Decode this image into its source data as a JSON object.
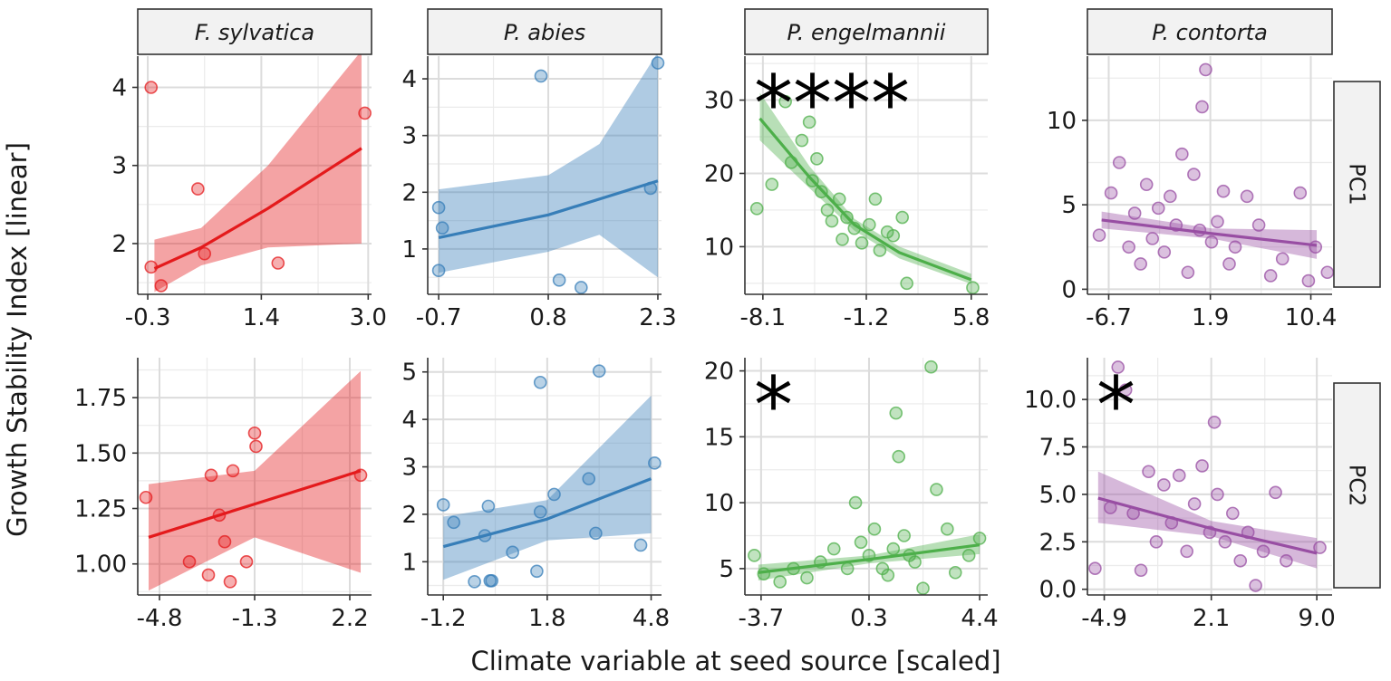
{
  "chart_data": {
    "type": "scatter",
    "layout": "facet_grid",
    "ylabel": "Growth Stability Index [linear]",
    "xlabel": "Climate variable at seed source [scaled]",
    "columns": [
      "F. sylvatica",
      "P. abies",
      "P. engelmannii",
      "P. contorta"
    ],
    "rows": [
      "PC1",
      "PC2"
    ],
    "colors": {
      "F. sylvatica": "#e41a1c",
      "P. abies": "#377eb8",
      "P. engelmannii": "#4daf4a",
      "P. contorta": "#984ea3"
    },
    "panels": [
      {
        "species": "F. sylvatica",
        "row": "PC1",
        "xlim": [
          -0.45,
          3.05
        ],
        "ylim": [
          1.35,
          4.4
        ],
        "xticks": [
          -0.3,
          1.4,
          3.0
        ],
        "xtick_labels": [
          "-0.3",
          "1.4",
          "3.0"
        ],
        "yticks": [
          2,
          3,
          4
        ],
        "ytick_labels": [
          "2",
          "3",
          "4"
        ],
        "significance": "",
        "points": [
          [
            -0.25,
            4.0
          ],
          [
            -0.25,
            1.7
          ],
          [
            -0.1,
            1.46
          ],
          [
            0.45,
            2.7
          ],
          [
            0.55,
            1.87
          ],
          [
            1.65,
            1.75
          ],
          [
            2.95,
            3.67
          ]
        ],
        "fit": [
          [
            -0.2,
            1.68
          ],
          [
            0.5,
            1.95
          ],
          [
            1.5,
            2.45
          ],
          [
            2.9,
            3.22
          ]
        ],
        "ci_upper": [
          [
            -0.2,
            2.05
          ],
          [
            0.5,
            2.2
          ],
          [
            1.5,
            3.0
          ],
          [
            2.9,
            4.47
          ]
        ],
        "ci_lower": [
          [
            -0.2,
            1.38
          ],
          [
            0.5,
            1.72
          ],
          [
            1.5,
            1.95
          ],
          [
            2.9,
            2.0
          ]
        ]
      },
      {
        "species": "P. abies",
        "row": "PC1",
        "xlim": [
          -0.85,
          2.35
        ],
        "ylim": [
          0.2,
          4.4
        ],
        "xticks": [
          -0.7,
          0.8,
          2.3
        ],
        "xtick_labels": [
          "-0.7",
          "0.8",
          "2.3"
        ],
        "yticks": [
          1,
          2,
          3,
          4
        ],
        "ytick_labels": [
          "1",
          "2",
          "3",
          "4"
        ],
        "significance": "",
        "points": [
          [
            -0.7,
            1.73
          ],
          [
            -0.65,
            1.37
          ],
          [
            -0.7,
            0.62
          ],
          [
            0.7,
            4.05
          ],
          [
            0.95,
            0.45
          ],
          [
            1.25,
            0.32
          ],
          [
            2.2,
            2.07
          ],
          [
            2.3,
            4.28
          ]
        ],
        "fit": [
          [
            -0.7,
            1.2
          ],
          [
            0.8,
            1.6
          ],
          [
            2.3,
            2.2
          ]
        ],
        "ci_upper": [
          [
            -0.7,
            2.05
          ],
          [
            0.8,
            2.3
          ],
          [
            1.5,
            2.85
          ],
          [
            2.3,
            4.47
          ]
        ],
        "ci_lower": [
          [
            -0.7,
            0.58
          ],
          [
            0.8,
            0.95
          ],
          [
            1.5,
            1.25
          ],
          [
            2.3,
            0.5
          ]
        ]
      },
      {
        "species": "P. engelmannii",
        "row": "PC1",
        "xlim": [
          -9.3,
          6.9
        ],
        "ylim": [
          3.5,
          36
        ],
        "xticks": [
          -8.1,
          -1.2,
          5.8
        ],
        "xtick_labels": [
          "-8.1",
          "-1.2",
          "5.8"
        ],
        "yticks": [
          10,
          20,
          30
        ],
        "ytick_labels": [
          "10",
          "20",
          "30"
        ],
        "significance": "****",
        "points": [
          [
            -8.5,
            15.2
          ],
          [
            -7.5,
            18.5
          ],
          [
            -6.6,
            29.8
          ],
          [
            -6.2,
            21.5
          ],
          [
            -5.5,
            24.5
          ],
          [
            -5.0,
            27.0
          ],
          [
            -4.8,
            19.0
          ],
          [
            -4.5,
            22.0
          ],
          [
            -4.2,
            17.5
          ],
          [
            -3.8,
            15.0
          ],
          [
            -3.5,
            13.5
          ],
          [
            -3.0,
            16.5
          ],
          [
            -2.8,
            11.0
          ],
          [
            -2.5,
            14.0
          ],
          [
            -2.0,
            12.5
          ],
          [
            -1.5,
            10.5
          ],
          [
            -1.0,
            13.0
          ],
          [
            -0.6,
            16.5
          ],
          [
            -0.3,
            9.5
          ],
          [
            0.2,
            12.0
          ],
          [
            0.6,
            11.5
          ],
          [
            1.2,
            14.0
          ],
          [
            1.5,
            5.0
          ],
          [
            5.9,
            4.4
          ]
        ],
        "fit": [
          [
            -8.3,
            27.5
          ],
          [
            -5.0,
            19.5
          ],
          [
            -2.0,
            13.0
          ],
          [
            1.0,
            9.2
          ],
          [
            5.8,
            5.5
          ]
        ],
        "ci_upper": [
          [
            -8.3,
            31.0
          ],
          [
            -5.0,
            21.0
          ],
          [
            -2.0,
            13.8
          ],
          [
            1.0,
            10.0
          ],
          [
            5.8,
            6.3
          ]
        ],
        "ci_lower": [
          [
            -8.3,
            24.5
          ],
          [
            -5.0,
            18.0
          ],
          [
            -2.0,
            12.2
          ],
          [
            1.0,
            8.4
          ],
          [
            5.8,
            4.9
          ]
        ]
      },
      {
        "species": "P. contorta",
        "row": "PC1",
        "xlim": [
          -8.5,
          12.2
        ],
        "ylim": [
          -0.3,
          13.8
        ],
        "xticks": [
          -6.7,
          1.9,
          10.4
        ],
        "xtick_labels": [
          "-6.7",
          "1.9",
          "10.4"
        ],
        "yticks": [
          0,
          5,
          10
        ],
        "ytick_labels": [
          "0",
          "5",
          "10"
        ],
        "significance": "",
        "points": [
          [
            -7.5,
            3.2
          ],
          [
            -6.5,
            5.7
          ],
          [
            -5.8,
            7.5
          ],
          [
            -5.0,
            2.5
          ],
          [
            -4.5,
            4.5
          ],
          [
            -4.0,
            1.5
          ],
          [
            -3.5,
            6.2
          ],
          [
            -3.0,
            3.0
          ],
          [
            -2.5,
            4.8
          ],
          [
            -2.0,
            2.2
          ],
          [
            -1.5,
            5.5
          ],
          [
            -1.0,
            3.8
          ],
          [
            -0.5,
            8.0
          ],
          [
            0.0,
            1.0
          ],
          [
            0.5,
            6.8
          ],
          [
            1.0,
            3.5
          ],
          [
            1.2,
            10.8
          ],
          [
            1.5,
            13.0
          ],
          [
            2.0,
            2.8
          ],
          [
            2.5,
            4.0
          ],
          [
            3.0,
            5.8
          ],
          [
            3.5,
            1.5
          ],
          [
            4.0,
            2.5
          ],
          [
            5.0,
            5.5
          ],
          [
            6.0,
            3.8
          ],
          [
            7.0,
            0.8
          ],
          [
            8.0,
            1.8
          ],
          [
            9.5,
            5.7
          ],
          [
            10.2,
            0.5
          ],
          [
            10.8,
            2.5
          ],
          [
            11.8,
            1.0
          ]
        ],
        "fit": [
          [
            -7.3,
            4.1
          ],
          [
            2.0,
            3.3
          ],
          [
            10.9,
            2.6
          ]
        ],
        "ci_upper": [
          [
            -7.3,
            4.6
          ],
          [
            2.0,
            3.6
          ],
          [
            10.9,
            3.5
          ]
        ],
        "ci_lower": [
          [
            -7.3,
            3.6
          ],
          [
            2.0,
            3.0
          ],
          [
            10.9,
            1.8
          ]
        ]
      },
      {
        "species": "F. sylvatica",
        "row": "PC2",
        "xlim": [
          -5.6,
          3.0
        ],
        "ylim": [
          0.86,
          1.93
        ],
        "xticks": [
          -4.8,
          -1.3,
          2.2
        ],
        "xtick_labels": [
          "-4.8",
          "-1.3",
          "2.2"
        ],
        "yticks": [
          1.0,
          1.25,
          1.5,
          1.75
        ],
        "ytick_labels": [
          "1.00",
          "1.25",
          "1.50",
          "1.75"
        ],
        "significance": "",
        "points": [
          [
            -5.3,
            1.3
          ],
          [
            -3.7,
            1.01
          ],
          [
            -3.0,
            0.95
          ],
          [
            -2.9,
            1.4
          ],
          [
            -2.6,
            1.22
          ],
          [
            -2.4,
            1.1
          ],
          [
            -2.2,
            0.92
          ],
          [
            -2.1,
            1.42
          ],
          [
            -1.6,
            1.01
          ],
          [
            -1.3,
            1.59
          ],
          [
            -1.25,
            1.53
          ],
          [
            2.6,
            1.4
          ]
        ],
        "fit": [
          [
            -5.2,
            1.12
          ],
          [
            -1.3,
            1.27
          ],
          [
            2.6,
            1.42
          ]
        ],
        "ci_upper": [
          [
            -5.2,
            1.36
          ],
          [
            -1.3,
            1.42
          ],
          [
            2.6,
            1.87
          ]
        ],
        "ci_lower": [
          [
            -5.2,
            0.88
          ],
          [
            -1.3,
            1.12
          ],
          [
            2.6,
            0.96
          ]
        ]
      },
      {
        "species": "P. abies",
        "row": "PC2",
        "xlim": [
          -1.65,
          5.1
        ],
        "ylim": [
          0.3,
          5.3
        ],
        "xticks": [
          -1.2,
          1.8,
          4.8
        ],
        "xtick_labels": [
          "-1.2",
          "1.8",
          "4.8"
        ],
        "yticks": [
          1,
          2,
          3,
          4,
          5
        ],
        "ytick_labels": [
          "1",
          "2",
          "3",
          "4",
          "5"
        ],
        "significance": "",
        "points": [
          [
            -1.2,
            2.2
          ],
          [
            -0.9,
            1.83
          ],
          [
            -0.3,
            0.58
          ],
          [
            0.0,
            1.55
          ],
          [
            0.1,
            2.17
          ],
          [
            0.15,
            0.6
          ],
          [
            0.2,
            0.6
          ],
          [
            0.8,
            1.2
          ],
          [
            1.5,
            0.8
          ],
          [
            1.6,
            2.05
          ],
          [
            1.6,
            4.78
          ],
          [
            2.0,
            2.42
          ],
          [
            3.0,
            2.75
          ],
          [
            3.2,
            1.6
          ],
          [
            3.3,
            5.02
          ],
          [
            4.5,
            1.35
          ],
          [
            4.9,
            3.08
          ]
        ],
        "fit": [
          [
            -1.2,
            1.32
          ],
          [
            1.8,
            1.9
          ],
          [
            4.8,
            2.75
          ]
        ],
        "ci_upper": [
          [
            -1.2,
            1.95
          ],
          [
            1.8,
            2.3
          ],
          [
            4.8,
            4.5
          ]
        ],
        "ci_lower": [
          [
            -1.2,
            0.62
          ],
          [
            1.8,
            1.45
          ],
          [
            4.8,
            1.6
          ]
        ]
      },
      {
        "species": "P. engelmannii",
        "row": "PC2",
        "xlim": [
          -4.3,
          4.7
        ],
        "ylim": [
          3.0,
          21.0
        ],
        "xticks": [
          -3.7,
          0.3,
          4.4
        ],
        "xtick_labels": [
          "-3.7",
          "0.3",
          "4.4"
        ],
        "yticks": [
          5,
          10,
          15,
          20
        ],
        "ytick_labels": [
          "5",
          "10",
          "15",
          "20"
        ],
        "significance": "*",
        "points": [
          [
            -3.95,
            6.0
          ],
          [
            -3.6,
            4.6
          ],
          [
            -3.0,
            4.0
          ],
          [
            -2.5,
            5.0
          ],
          [
            -2.0,
            4.3
          ],
          [
            -1.5,
            5.5
          ],
          [
            -1.0,
            6.5
          ],
          [
            -0.5,
            5.0
          ],
          [
            -0.2,
            10.0
          ],
          [
            0.0,
            7.0
          ],
          [
            0.3,
            6.0
          ],
          [
            0.5,
            8.0
          ],
          [
            0.8,
            5.0
          ],
          [
            1.0,
            4.5
          ],
          [
            1.2,
            6.5
          ],
          [
            1.3,
            16.8
          ],
          [
            1.4,
            13.5
          ],
          [
            1.6,
            7.5
          ],
          [
            1.8,
            6.0
          ],
          [
            2.0,
            5.5
          ],
          [
            2.3,
            3.5
          ],
          [
            2.6,
            20.3
          ],
          [
            2.8,
            11.0
          ],
          [
            3.2,
            8.0
          ],
          [
            3.5,
            4.7
          ],
          [
            4.0,
            6.0
          ],
          [
            4.4,
            7.3
          ]
        ],
        "fit": [
          [
            -3.8,
            4.7
          ],
          [
            0.3,
            5.7
          ],
          [
            4.4,
            6.8
          ]
        ],
        "ci_upper": [
          [
            -3.8,
            5.3
          ],
          [
            0.3,
            6.0
          ],
          [
            4.4,
            7.6
          ]
        ],
        "ci_lower": [
          [
            -3.8,
            4.1
          ],
          [
            0.3,
            5.4
          ],
          [
            4.4,
            6.1
          ]
        ]
      },
      {
        "species": "P. contorta",
        "row": "PC2",
        "xlim": [
          -6.0,
          10.0
        ],
        "ylim": [
          -0.3,
          12.2
        ],
        "xticks": [
          -4.9,
          2.1,
          9.0
        ],
        "xtick_labels": [
          "-4.9",
          "2.1",
          "9.0"
        ],
        "yticks": [
          0.0,
          2.5,
          5.0,
          7.5,
          10.0
        ],
        "ytick_labels": [
          "0.0",
          "2.5",
          "5.0",
          "7.5",
          "10.0"
        ],
        "significance": "*",
        "points": [
          [
            -5.5,
            1.1
          ],
          [
            -4.5,
            4.3
          ],
          [
            -4.0,
            11.7
          ],
          [
            -3.5,
            10.5
          ],
          [
            -3.0,
            4.0
          ],
          [
            -2.5,
            1.0
          ],
          [
            -2.0,
            6.2
          ],
          [
            -1.5,
            2.5
          ],
          [
            -1.0,
            5.5
          ],
          [
            -0.5,
            3.5
          ],
          [
            0.0,
            6.0
          ],
          [
            0.5,
            2.0
          ],
          [
            1.0,
            4.5
          ],
          [
            1.5,
            6.5
          ],
          [
            2.0,
            3.0
          ],
          [
            2.3,
            8.8
          ],
          [
            2.5,
            5.0
          ],
          [
            3.0,
            2.5
          ],
          [
            3.5,
            4.0
          ],
          [
            4.0,
            1.5
          ],
          [
            4.5,
            3.0
          ],
          [
            5.0,
            0.2
          ],
          [
            5.5,
            2.0
          ],
          [
            6.3,
            5.1
          ],
          [
            7.0,
            1.5
          ],
          [
            9.2,
            2.2
          ]
        ],
        "fit": [
          [
            -5.3,
            4.8
          ],
          [
            2.1,
            3.2
          ],
          [
            9.0,
            1.9
          ]
        ],
        "ci_upper": [
          [
            -5.3,
            6.2
          ],
          [
            2.1,
            3.6
          ],
          [
            9.0,
            2.7
          ]
        ],
        "ci_lower": [
          [
            -5.3,
            3.5
          ],
          [
            2.1,
            2.8
          ],
          [
            9.0,
            1.1
          ]
        ]
      }
    ]
  }
}
